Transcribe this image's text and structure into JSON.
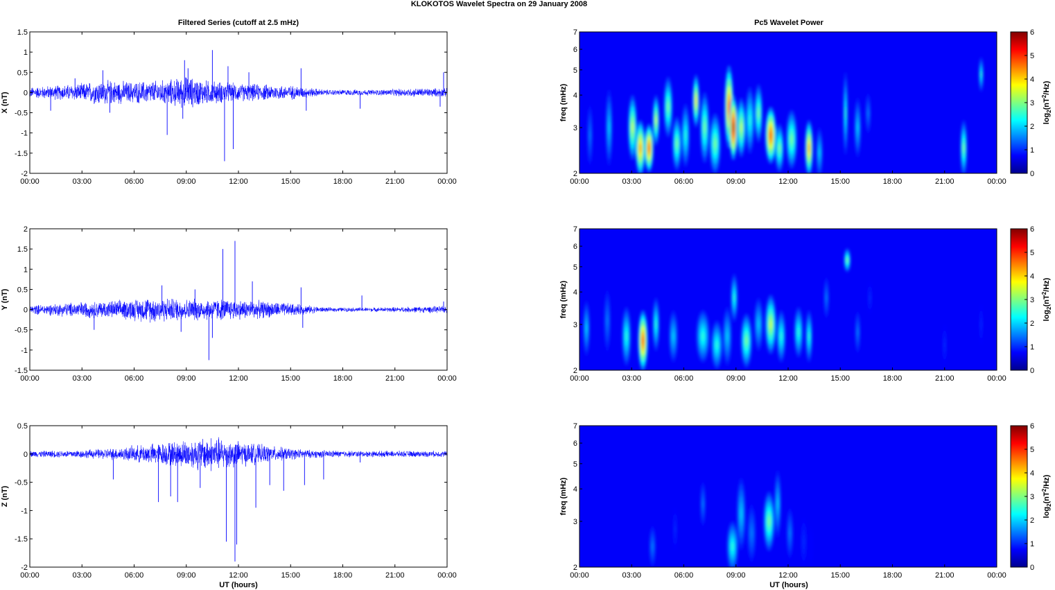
{
  "figure": {
    "suptitle": "KLOKOTOS Wavelet Spectra on 29 January   2008",
    "left_title": "Filtered Series (cutoff at 2.5 mHz)",
    "right_title": "Pc5 Wavelet Power",
    "xlabel": "UT (hours)"
  },
  "chart_data": [
    {
      "type": "line",
      "component": "X",
      "ylabel": "X (nT)",
      "xlim": [
        0,
        24
      ],
      "ylim": [
        -2,
        1.5
      ],
      "xticks": [
        0,
        3,
        6,
        9,
        12,
        15,
        18,
        21,
        24
      ],
      "xtick_labels": [
        "00:00",
        "03:00",
        "06:00",
        "09:00",
        "12:00",
        "15:00",
        "18:00",
        "21:00",
        "00:00"
      ],
      "yticks": [
        -2,
        -1.5,
        -1,
        -0.5,
        0,
        0.5,
        1,
        1.5
      ],
      "ytick_labels": [
        "-2",
        "-1.5",
        "-1",
        "-0.5",
        "0",
        "0.5",
        "1",
        "1.5"
      ],
      "line_color": "#0000ff",
      "envelope": [
        [
          0,
          0.15
        ],
        [
          3,
          0.25
        ],
        [
          4,
          0.35
        ],
        [
          6,
          0.3
        ],
        [
          8,
          0.35
        ],
        [
          9,
          0.45
        ],
        [
          10,
          0.35
        ],
        [
          12,
          0.25
        ],
        [
          15,
          0.2
        ],
        [
          17,
          0.08
        ],
        [
          20,
          0.08
        ],
        [
          22,
          0.12
        ],
        [
          24,
          0.12
        ]
      ],
      "spikes": [
        [
          1.2,
          -0.45
        ],
        [
          2.6,
          0.35
        ],
        [
          4.2,
          0.55
        ],
        [
          4.6,
          -0.5
        ],
        [
          7.9,
          -1.05
        ],
        [
          8.8,
          -0.65
        ],
        [
          8.9,
          0.8
        ],
        [
          9.1,
          0.6
        ],
        [
          10.5,
          1.05
        ],
        [
          11.2,
          -1.7
        ],
        [
          11.7,
          -1.4
        ],
        [
          11.4,
          0.65
        ],
        [
          12.6,
          0.5
        ],
        [
          15.6,
          0.6
        ],
        [
          15.9,
          -0.45
        ],
        [
          19.0,
          -0.4
        ],
        [
          23.8,
          0.5
        ],
        [
          23.6,
          -0.35
        ]
      ]
    },
    {
      "type": "line",
      "component": "Y",
      "ylabel": "Y (nT)",
      "xlim": [
        0,
        24
      ],
      "ylim": [
        -1.5,
        2
      ],
      "xticks": [
        0,
        3,
        6,
        9,
        12,
        15,
        18,
        21,
        24
      ],
      "xtick_labels": [
        "00:00",
        "03:00",
        "06:00",
        "09:00",
        "12:00",
        "15:00",
        "18:00",
        "21:00",
        "00:00"
      ],
      "yticks": [
        -1.5,
        -1,
        -0.5,
        0,
        0.5,
        1,
        1.5,
        2
      ],
      "ytick_labels": [
        "-1.5",
        "-1",
        "-0.5",
        "0",
        "0.5",
        "1",
        "1.5",
        "2"
      ],
      "line_color": "#0000ff",
      "envelope": [
        [
          0,
          0.12
        ],
        [
          3,
          0.22
        ],
        [
          5,
          0.25
        ],
        [
          7,
          0.35
        ],
        [
          9,
          0.3
        ],
        [
          11,
          0.3
        ],
        [
          13,
          0.25
        ],
        [
          15,
          0.18
        ],
        [
          17,
          0.06
        ],
        [
          20,
          0.06
        ],
        [
          22,
          0.08
        ],
        [
          24,
          0.1
        ]
      ],
      "spikes": [
        [
          3.7,
          -0.5
        ],
        [
          7.6,
          0.6
        ],
        [
          8.7,
          -0.55
        ],
        [
          9.5,
          0.5
        ],
        [
          10.3,
          -1.25
        ],
        [
          10.5,
          -0.7
        ],
        [
          11.1,
          1.5
        ],
        [
          11.8,
          1.7
        ],
        [
          12.8,
          0.7
        ],
        [
          15.6,
          0.55
        ],
        [
          15.7,
          -0.45
        ],
        [
          19.1,
          0.35
        ],
        [
          23.8,
          0.2
        ]
      ]
    },
    {
      "type": "line",
      "component": "Z",
      "ylabel": "Z (nT)",
      "xlim": [
        0,
        24
      ],
      "ylim": [
        -2,
        0.5
      ],
      "xticks": [
        0,
        3,
        6,
        9,
        12,
        15,
        18,
        21,
        24
      ],
      "xtick_labels": [
        "00:00",
        "03:00",
        "06:00",
        "09:00",
        "12:00",
        "15:00",
        "18:00",
        "21:00",
        "00:00"
      ],
      "yticks": [
        -2,
        -1.5,
        -1,
        -0.5,
        0,
        0.5
      ],
      "ytick_labels": [
        "-2",
        "-1.5",
        "-1",
        "-0.5",
        "0",
        "0.5"
      ],
      "line_color": "#0000ff",
      "envelope": [
        [
          0,
          0.06
        ],
        [
          3,
          0.08
        ],
        [
          5,
          0.12
        ],
        [
          7,
          0.2
        ],
        [
          9,
          0.28
        ],
        [
          10.5,
          0.35
        ],
        [
          12,
          0.25
        ],
        [
          14,
          0.15
        ],
        [
          16,
          0.08
        ],
        [
          19,
          0.06
        ],
        [
          24,
          0.06
        ]
      ],
      "spikes": [
        [
          4.8,
          -0.45
        ],
        [
          7.4,
          -0.85
        ],
        [
          8.1,
          -0.75
        ],
        [
          8.5,
          -0.85
        ],
        [
          9.8,
          -0.6
        ],
        [
          11.3,
          -1.55
        ],
        [
          11.8,
          -1.9
        ],
        [
          11.9,
          -1.6
        ],
        [
          13.0,
          -0.95
        ],
        [
          13.8,
          -0.55
        ],
        [
          14.6,
          -0.65
        ],
        [
          15.8,
          -0.55
        ],
        [
          16.9,
          -0.45
        ],
        [
          19.0,
          -0.15
        ]
      ]
    },
    {
      "type": "heatmap",
      "component": "X",
      "ylabel": "freq (mHz)",
      "cbar_label": "log2(nT2/Hz)",
      "xlim": [
        0,
        24
      ],
      "ylim": [
        2,
        7
      ],
      "yscale": "log",
      "clim": [
        0,
        6
      ],
      "colormap": "jet",
      "xticks": [
        0,
        3,
        6,
        9,
        12,
        15,
        18,
        21,
        24
      ],
      "xtick_labels": [
        "00:00",
        "03:00",
        "06:00",
        "09:00",
        "12:00",
        "15:00",
        "18:00",
        "21:00",
        "00:00"
      ],
      "yticks": [
        2,
        3,
        4,
        5,
        6,
        7
      ],
      "ytick_labels": [
        "2",
        "3",
        "4",
        "5",
        "6",
        "7"
      ],
      "cbar_ticks": [
        0,
        1,
        2,
        3,
        4,
        5,
        6
      ],
      "blobs": [
        [
          0.6,
          2.8,
          0.12,
          0.9,
          1.5
        ],
        [
          1.7,
          3.0,
          0.15,
          1.2,
          2.0
        ],
        [
          3.05,
          3.0,
          0.2,
          1.0,
          3.5
        ],
        [
          3.5,
          2.5,
          0.22,
          0.7,
          4.5
        ],
        [
          4.0,
          2.5,
          0.2,
          0.6,
          5.0
        ],
        [
          4.4,
          3.2,
          0.15,
          0.8,
          3.5
        ],
        [
          5.1,
          3.6,
          0.2,
          1.1,
          3.0
        ],
        [
          5.6,
          2.6,
          0.2,
          0.7,
          3.0
        ],
        [
          6.1,
          2.8,
          0.18,
          0.9,
          2.5
        ],
        [
          6.7,
          3.8,
          0.15,
          1.0,
          4.0
        ],
        [
          7.2,
          3.0,
          0.2,
          1.1,
          3.0
        ],
        [
          7.8,
          2.6,
          0.25,
          0.8,
          3.0
        ],
        [
          8.6,
          3.6,
          0.2,
          1.6,
          5.0
        ],
        [
          8.85,
          3.0,
          0.18,
          1.0,
          6.0
        ],
        [
          9.3,
          3.0,
          0.2,
          0.9,
          3.5
        ],
        [
          9.8,
          3.2,
          0.2,
          1.1,
          2.5
        ],
        [
          10.3,
          3.4,
          0.18,
          1.0,
          3.0
        ],
        [
          11.0,
          2.8,
          0.25,
          0.8,
          5.0
        ],
        [
          11.5,
          2.5,
          0.2,
          0.6,
          3.0
        ],
        [
          12.2,
          2.7,
          0.25,
          0.8,
          3.0
        ],
        [
          13.2,
          2.5,
          0.18,
          0.7,
          4.5
        ],
        [
          13.8,
          2.4,
          0.15,
          0.6,
          2.0
        ],
        [
          15.3,
          3.4,
          0.1,
          1.5,
          2.5
        ],
        [
          16.0,
          3.0,
          0.15,
          0.9,
          2.0
        ],
        [
          16.6,
          3.4,
          0.12,
          0.7,
          1.5
        ],
        [
          22.1,
          2.5,
          0.15,
          0.7,
          3.0
        ],
        [
          23.1,
          4.8,
          0.1,
          0.8,
          2.5
        ]
      ]
    },
    {
      "type": "heatmap",
      "component": "Y",
      "ylabel": "freq (mHz)",
      "cbar_label": "log2(nT2/Hz)",
      "xlim": [
        0,
        24
      ],
      "ylim": [
        2,
        7
      ],
      "yscale": "log",
      "clim": [
        0,
        6
      ],
      "colormap": "jet",
      "xticks": [
        0,
        3,
        6,
        9,
        12,
        15,
        18,
        21,
        24
      ],
      "xtick_labels": [
        "00:00",
        "03:00",
        "06:00",
        "09:00",
        "12:00",
        "15:00",
        "18:00",
        "21:00",
        "00:00"
      ],
      "yticks": [
        2,
        3,
        4,
        5,
        6,
        7
      ],
      "ytick_labels": [
        "2",
        "3",
        "4",
        "5",
        "6",
        "7"
      ],
      "cbar_ticks": [
        0,
        1,
        2,
        3,
        4,
        5,
        6
      ],
      "blobs": [
        [
          0.4,
          2.9,
          0.15,
          0.8,
          2.0
        ],
        [
          1.6,
          3.1,
          0.15,
          1.0,
          1.5
        ],
        [
          2.7,
          2.7,
          0.2,
          0.8,
          2.5
        ],
        [
          3.65,
          2.6,
          0.22,
          0.8,
          5.0
        ],
        [
          4.4,
          3.0,
          0.15,
          0.8,
          2.5
        ],
        [
          5.4,
          2.7,
          0.2,
          0.7,
          2.0
        ],
        [
          7.1,
          2.7,
          0.3,
          0.7,
          2.5
        ],
        [
          7.9,
          2.5,
          0.25,
          0.6,
          2.5
        ],
        [
          8.5,
          2.7,
          0.2,
          0.8,
          2.0
        ],
        [
          8.9,
          3.8,
          0.15,
          0.9,
          2.5
        ],
        [
          9.6,
          2.6,
          0.25,
          0.7,
          3.0
        ],
        [
          10.3,
          3.0,
          0.2,
          0.8,
          2.0
        ],
        [
          11.0,
          3.0,
          0.25,
          0.9,
          3.5
        ],
        [
          11.6,
          2.7,
          0.2,
          0.7,
          2.5
        ],
        [
          12.6,
          2.8,
          0.2,
          0.7,
          2.5
        ],
        [
          13.2,
          2.7,
          0.15,
          0.7,
          2.5
        ],
        [
          14.2,
          3.8,
          0.12,
          0.8,
          1.5
        ],
        [
          15.4,
          5.3,
          0.15,
          0.6,
          3.0
        ],
        [
          16.0,
          2.8,
          0.12,
          0.6,
          1.5
        ],
        [
          16.7,
          3.8,
          0.1,
          0.6,
          1.0
        ],
        [
          21.0,
          2.5,
          0.1,
          0.5,
          1.0
        ],
        [
          23.1,
          3.0,
          0.08,
          0.6,
          1.0
        ]
      ]
    },
    {
      "type": "heatmap",
      "component": "Z",
      "ylabel": "freq (mHz)",
      "cbar_label": "log2(nT2/Hz)",
      "xlim": [
        0,
        24
      ],
      "ylim": [
        2,
        7
      ],
      "yscale": "log",
      "clim": [
        0,
        6
      ],
      "colormap": "jet",
      "xticks": [
        0,
        3,
        6,
        9,
        12,
        15,
        18,
        21,
        24
      ],
      "xtick_labels": [
        "00:00",
        "03:00",
        "06:00",
        "09:00",
        "12:00",
        "15:00",
        "18:00",
        "21:00",
        "00:00"
      ],
      "yticks": [
        2,
        3,
        4,
        5,
        6,
        7
      ],
      "ytick_labels": [
        "2",
        "3",
        "4",
        "5",
        "6",
        "7"
      ],
      "cbar_ticks": [
        0,
        1,
        2,
        3,
        4,
        5,
        6
      ],
      "blobs": [
        [
          4.2,
          2.4,
          0.15,
          0.5,
          1.5
        ],
        [
          5.5,
          2.8,
          0.1,
          0.6,
          1.0
        ],
        [
          7.1,
          3.5,
          0.12,
          0.8,
          1.5
        ],
        [
          8.8,
          2.4,
          0.25,
          0.6,
          2.5
        ],
        [
          9.3,
          3.2,
          0.2,
          1.2,
          2.0
        ],
        [
          9.9,
          2.7,
          0.2,
          0.8,
          1.5
        ],
        [
          10.9,
          3.0,
          0.25,
          0.9,
          3.0
        ],
        [
          11.4,
          3.5,
          0.15,
          1.2,
          2.0
        ],
        [
          12.1,
          2.7,
          0.15,
          0.7,
          1.5
        ],
        [
          12.9,
          2.5,
          0.15,
          0.6,
          1.0
        ],
        [
          13.3,
          2.4,
          0.12,
          0.5,
          0.8
        ]
      ]
    }
  ]
}
